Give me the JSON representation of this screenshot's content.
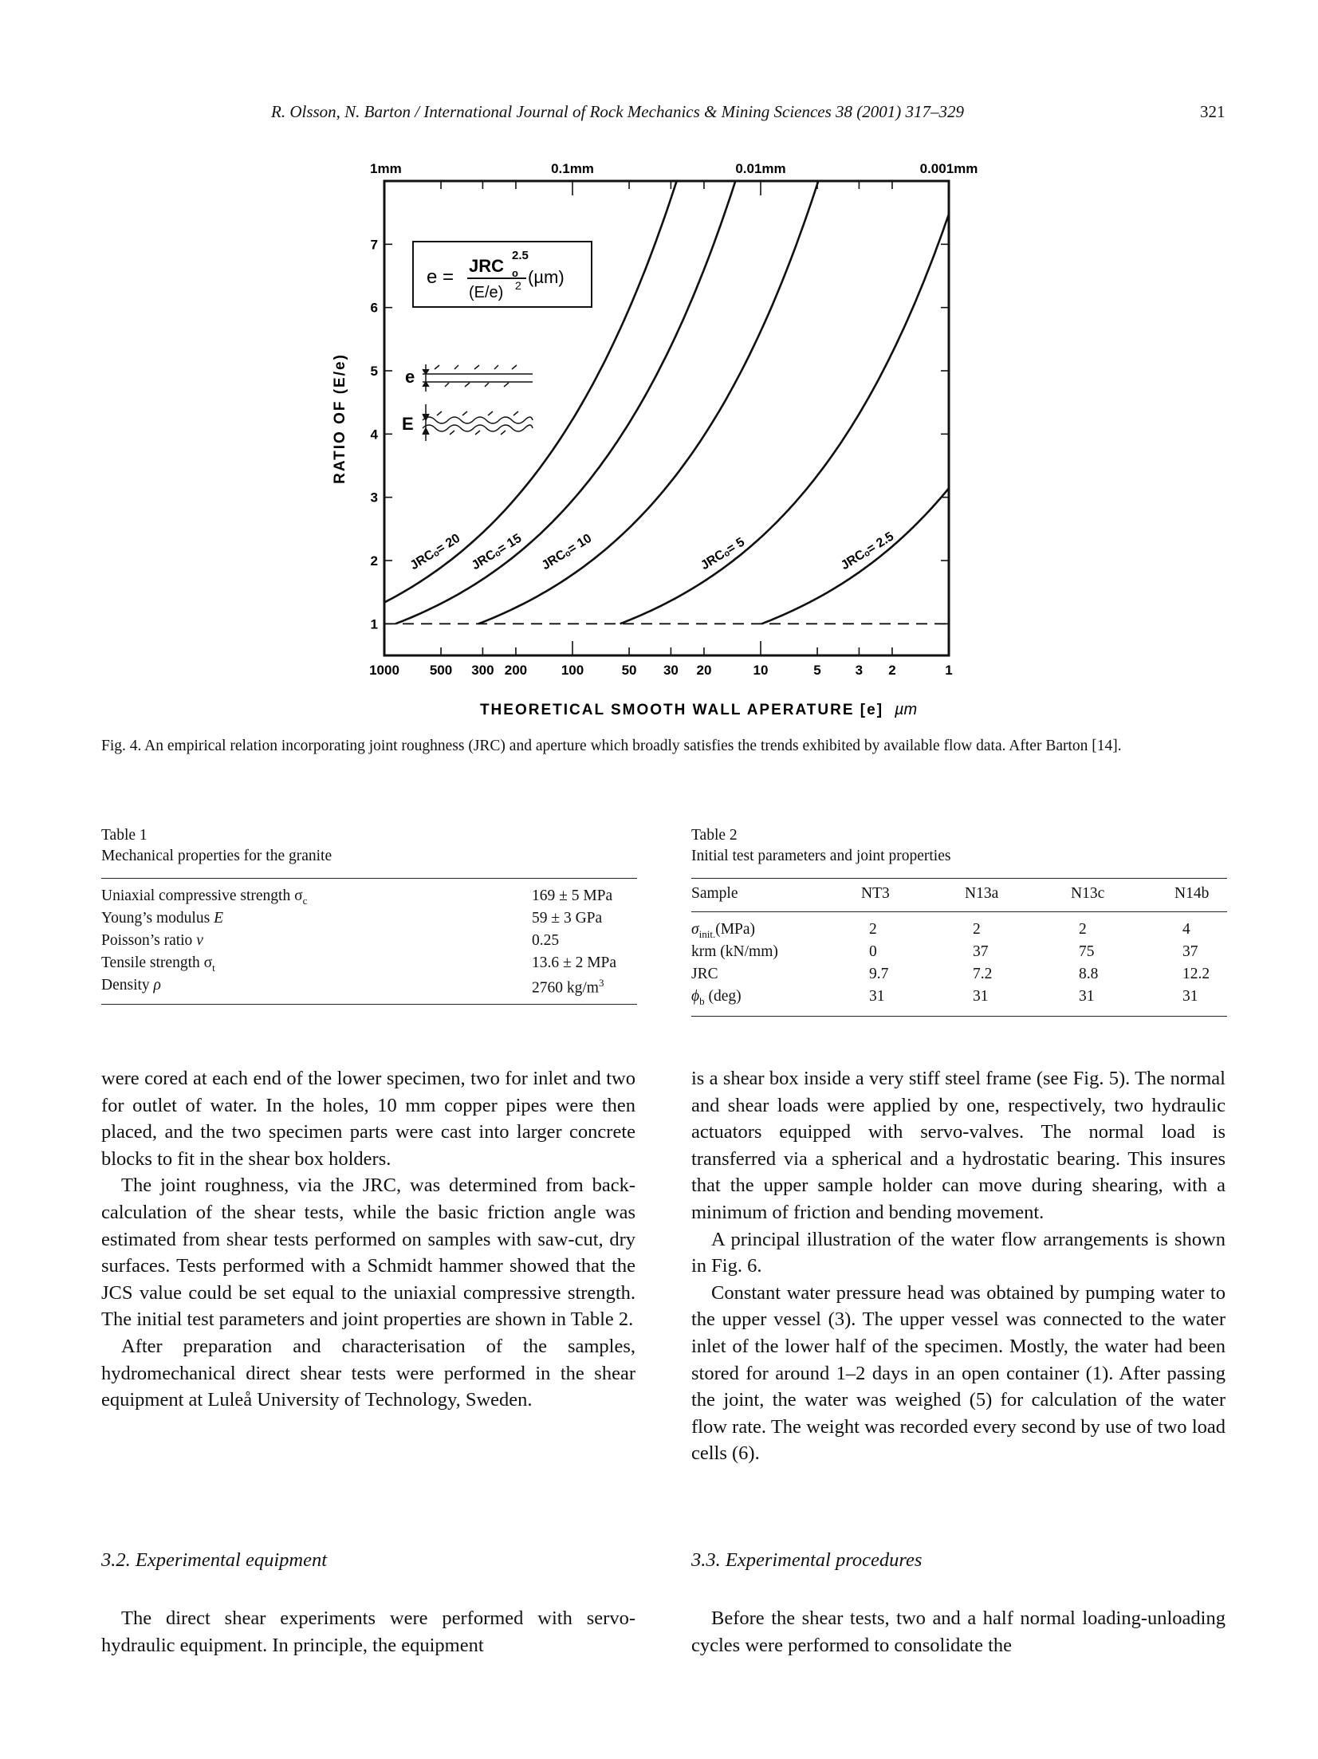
{
  "header": {
    "running": "R. Olsson, N. Barton / International Journal of Rock Mechanics & Mining Sciences 38 (2001) 317–329",
    "page": "321"
  },
  "figure": {
    "top_ticks": [
      "1mm",
      "0.1mm",
      "0.01mm",
      "0.001mm"
    ],
    "y_ticks": [
      "1",
      "2",
      "3",
      "4",
      "5",
      "6",
      "7"
    ],
    "x_ticks": [
      "1000",
      "500",
      "300",
      "200",
      "100",
      "50",
      "30",
      "20",
      "10",
      "5",
      "3",
      "2",
      "1"
    ],
    "ylabel": "RATIO OF (E/e)",
    "xlabel": "THEORETICAL SMOOTH WALL APERATURE [e]",
    "xunit": "µm",
    "formula": {
      "lhs": "e =",
      "num": "JRC",
      "num_sub": "o",
      "num_sup": "2.5",
      "den": "(E/e)",
      "den_sup": "2",
      "unit": "(µm)"
    },
    "inset_e": "e",
    "inset_E": "E",
    "curve_labels": [
      "JRCₒ= 20",
      "JRCₒ= 15",
      "JRCₒ= 10",
      "JRCₒ= 5",
      "JRCₒ= 2.5"
    ]
  },
  "chart_data": {
    "type": "line",
    "xlabel": "THEORETICAL SMOOTH WALL APERATURE [e] µm",
    "ylabel": "RATIO OF (E/e)",
    "x_scale": "log, reversed",
    "xlim": [
      1000,
      1
    ],
    "ylim": [
      0.5,
      8
    ],
    "secondary_x_ticks": [
      "1mm",
      "0.1mm",
      "0.01mm",
      "0.001mm"
    ],
    "formula": "e = JRC0^2.5 / (E/e)^2 (µm)",
    "series": [
      {
        "name": "JRCₒ= 20",
        "jrc": 20
      },
      {
        "name": "JRCₒ= 15",
        "jrc": 15
      },
      {
        "name": "JRCₒ= 10",
        "jrc": 10
      },
      {
        "name": "JRCₒ= 5",
        "jrc": 5
      },
      {
        "name": "JRCₒ= 2.5",
        "jrc": 2.5
      }
    ],
    "reference_line": {
      "y": 1,
      "style": "dashed"
    }
  },
  "caption": "Fig. 4. An empirical relation incorporating joint roughness (JRC) and aperture which broadly satisfies the trends exhibited by available flow data. After Barton [14].",
  "table1": {
    "label": "Table 1",
    "title": "Mechanical properties for the granite",
    "rows": [
      {
        "prop": "Uniaxial compressive strength σ",
        "sub": "c",
        "value": "169 ± 5 MPa"
      },
      {
        "prop": "Young’s modulus ",
        "ital": "E",
        "value": "59 ± 3 GPa"
      },
      {
        "prop": "Poisson’s ratio ",
        "ital": "v",
        "value": "0.25"
      },
      {
        "prop": "Tensile strength σ",
        "sub": "t",
        "value": "13.6 ± 2 MPa"
      },
      {
        "prop": "Density ",
        "ital": "ρ",
        "value": "2760 kg/m",
        "sup": "3"
      }
    ]
  },
  "table2": {
    "label": "Table 2",
    "title": "Initial test parameters and joint properties",
    "headers": [
      "Sample",
      "NT3",
      "N13a",
      "N13c",
      "N14b"
    ],
    "rows": [
      {
        "label": "σ",
        "sub": "init.",
        "tail": "(MPa)",
        "values": [
          "2",
          "2",
          "2",
          "4"
        ]
      },
      {
        "label": "krm (kN/mm)",
        "values": [
          "0",
          "37",
          "75",
          "37"
        ]
      },
      {
        "label": "JRC",
        "values": [
          "9.7",
          "7.2",
          "8.8",
          "12.2"
        ]
      },
      {
        "label": "ϕ",
        "sub": "b",
        "tail": " (deg)",
        "values": [
          "31",
          "31",
          "31",
          "31"
        ]
      }
    ]
  },
  "left_col": {
    "p1": "were cored at each end of the lower specimen, two for inlet and two for outlet of water. In the holes, 10 mm copper pipes were then placed, and the two specimen parts were cast into larger concrete blocks to fit in the shear box holders.",
    "p2": "The joint roughness, via the JRC, was determined from back-calculation of the shear tests, while the basic friction angle was estimated from shear tests performed on samples with saw-cut, dry surfaces. Tests performed with a Schmidt hammer showed that the JCS value could be set equal to the uniaxial compressive strength. The initial test parameters and joint properties are shown in Table 2.",
    "p3": "After preparation and characterisation of the samples, hydromechanical direct shear tests were performed in the shear equipment at Luleå University of Technology, Sweden.",
    "sec_heading": "3.2. Experimental equipment",
    "p4": "The direct shear experiments were performed with servo-hydraulic equipment. In principle, the equipment"
  },
  "right_col": {
    "p1": "is a shear box inside a very stiff steel frame (see Fig. 5). The normal and shear loads were applied by one, respectively, two hydraulic actuators equipped with servo-valves. The normal load is transferred via a spherical and a hydrostatic bearing. This insures that the upper sample holder can move during shearing, with a minimum of friction and bending movement.",
    "p2": "A principal illustration of the water flow arrangements is shown in Fig. 6.",
    "p3": "Constant water pressure head was obtained by pumping water to the upper vessel (3). The upper vessel was connected to the water inlet of the lower half of the specimen. Mostly, the water had been stored for around 1–2 days in an open container (1). After passing the joint, the water was weighed (5) for calculation of the water flow rate. The weight was recorded every second by use of two load cells (6).",
    "sec_heading": "3.3. Experimental procedures",
    "p4": "Before the shear tests, two and a half normal loading-unloading cycles were performed to consolidate the"
  }
}
